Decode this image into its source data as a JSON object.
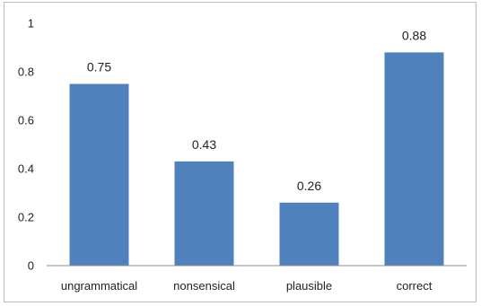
{
  "chart_data": {
    "type": "bar",
    "categories": [
      "ungrammatical",
      "nonsensical",
      "plausible",
      "correct"
    ],
    "values": [
      0.75,
      0.43,
      0.26,
      0.88
    ],
    "data_labels": [
      "0.75",
      "0.43",
      "0.26",
      "0.88"
    ],
    "yticks": [
      0,
      0.2,
      0.4,
      0.6,
      0.8,
      1
    ],
    "ytick_labels": [
      "0",
      "0.2",
      "0.4",
      "0.6",
      "0.8",
      "1"
    ],
    "ylim": [
      0,
      1
    ],
    "title": "",
    "xlabel": "",
    "ylabel": "",
    "grid": false,
    "legend": "none",
    "colors": {
      "bar": "#4f81bd",
      "axis": "#8c8c8c",
      "frame": "#bcbcbc",
      "text": "#222222"
    }
  }
}
